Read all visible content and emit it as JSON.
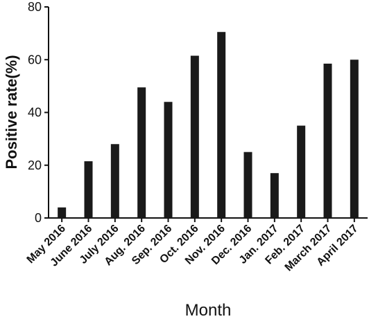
{
  "chart_data": {
    "type": "bar",
    "title": "",
    "xlabel": "Month",
    "ylabel": "Positive rate(%)",
    "ylim": [
      0,
      80
    ],
    "yticks": [
      0,
      20,
      40,
      60,
      80
    ],
    "categories": [
      "May 2016",
      "June 2016",
      "July 2016",
      "Aug. 2016",
      "Sep. 2016",
      "Oct. 2016",
      "Nov. 2016",
      "Dec. 2016",
      "Jan. 2017",
      "Feb. 2017",
      "March 2017",
      "April 2017"
    ],
    "values": [
      4,
      21.5,
      28,
      49.5,
      44,
      61.5,
      70.5,
      25,
      17,
      35,
      58.5,
      60
    ],
    "bar_color": "#1a1a1a",
    "grid": false,
    "legend": "none"
  }
}
